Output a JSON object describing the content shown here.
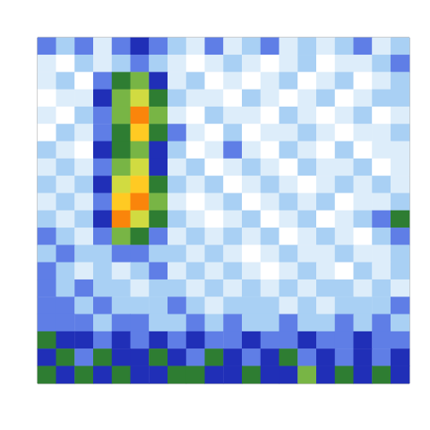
{
  "chart_data": {
    "type": "heatmap",
    "tick_labels": false,
    "zlim": [
      0,
      10
    ],
    "z": [
      [
        3,
        2,
        3,
        1,
        3,
        4,
        3,
        2,
        1,
        3,
        1,
        2,
        3,
        1,
        2,
        1,
        2,
        3,
        1,
        2
      ],
      [
        1,
        0,
        2,
        1,
        2,
        3,
        2,
        1,
        0,
        1,
        2,
        1,
        0,
        1,
        2,
        0,
        1,
        1,
        2,
        3
      ],
      [
        1,
        2,
        0,
        3,
        5,
        6,
        4,
        1,
        2,
        0,
        1,
        0,
        1,
        2,
        0,
        1,
        2,
        0,
        1,
        2
      ],
      [
        0,
        1,
        1,
        4,
        6,
        7,
        5,
        2,
        1,
        1,
        0,
        2,
        1,
        0,
        1,
        2,
        0,
        1,
        2,
        2
      ],
      [
        1,
        0,
        2,
        3,
        6,
        9,
        6,
        1,
        0,
        2,
        1,
        1,
        0,
        2,
        1,
        0,
        1,
        2,
        0,
        1
      ],
      [
        0,
        2,
        1,
        3,
        5,
        8,
        5,
        3,
        1,
        0,
        2,
        0,
        1,
        1,
        2,
        1,
        0,
        1,
        1,
        2
      ],
      [
        2,
        1,
        0,
        4,
        5,
        6,
        4,
        2,
        0,
        1,
        3,
        1,
        0,
        2,
        1,
        0,
        2,
        0,
        1,
        1
      ],
      [
        1,
        2,
        1,
        3,
        6,
        7,
        4,
        1,
        2,
        0,
        1,
        2,
        1,
        0,
        2,
        1,
        1,
        2,
        0,
        1
      ],
      [
        2,
        1,
        2,
        4,
        7,
        8,
        5,
        2,
        1,
        2,
        0,
        1,
        2,
        1,
        0,
        1,
        2,
        1,
        2,
        1
      ],
      [
        1,
        2,
        1,
        3,
        8,
        9,
        6,
        1,
        0,
        1,
        2,
        0,
        1,
        2,
        1,
        2,
        0,
        1,
        1,
        2
      ],
      [
        2,
        1,
        2,
        4,
        9,
        7,
        5,
        2,
        1,
        0,
        1,
        2,
        0,
        1,
        2,
        0,
        1,
        2,
        3,
        5
      ],
      [
        3,
        2,
        1,
        3,
        6,
        5,
        3,
        1,
        2,
        1,
        2,
        1,
        2,
        0,
        1,
        2,
        1,
        0,
        2,
        3
      ],
      [
        2,
        3,
        2,
        2,
        3,
        3,
        2,
        2,
        1,
        2,
        1,
        0,
        1,
        2,
        1,
        1,
        2,
        1,
        1,
        2
      ],
      [
        3,
        2,
        1,
        2,
        1,
        2,
        3,
        1,
        2,
        1,
        2,
        1,
        0,
        1,
        2,
        1,
        0,
        2,
        1,
        2
      ],
      [
        3,
        2,
        3,
        2,
        2,
        1,
        2,
        2,
        1,
        2,
        1,
        2,
        1,
        2,
        1,
        2,
        2,
        1,
        2,
        1
      ],
      [
        3,
        3,
        2,
        3,
        2,
        2,
        2,
        3,
        2,
        1,
        2,
        2,
        2,
        1,
        2,
        1,
        2,
        2,
        2,
        3
      ],
      [
        3,
        3,
        3,
        2,
        3,
        3,
        2,
        2,
        3,
        2,
        3,
        2,
        2,
        3,
        2,
        2,
        3,
        2,
        3,
        2
      ],
      [
        5,
        4,
        4,
        3,
        4,
        3,
        4,
        3,
        4,
        3,
        3,
        4,
        3,
        3,
        4,
        3,
        3,
        4,
        3,
        3
      ],
      [
        4,
        5,
        3,
        5,
        4,
        4,
        5,
        4,
        3,
        5,
        4,
        3,
        4,
        5,
        3,
        4,
        3,
        4,
        3,
        4
      ],
      [
        5,
        4,
        5,
        4,
        5,
        4,
        4,
        5,
        5,
        4,
        4,
        5,
        4,
        4,
        6,
        4,
        5,
        4,
        5,
        4
      ]
    ]
  }
}
